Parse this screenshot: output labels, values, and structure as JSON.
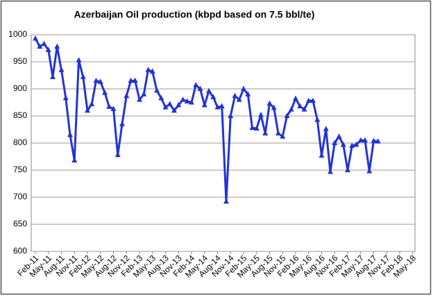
{
  "chart_data": {
    "type": "line",
    "title": "Azerbaijan Oil production (kbpd based on 7.5 bbl/te)",
    "categories": [
      "Feb-11",
      null,
      null,
      "May-11",
      null,
      null,
      "Aug-11",
      null,
      null,
      "Nov-11",
      null,
      null,
      "Feb-12",
      null,
      null,
      "May-12",
      null,
      null,
      "Aug-12",
      null,
      null,
      "Nov-12",
      null,
      null,
      "Feb-13",
      null,
      null,
      "May-13",
      null,
      null,
      "Aug-13",
      null,
      null,
      "Nov-13",
      null,
      null,
      "Feb-14",
      null,
      null,
      "May-14",
      null,
      null,
      "Aug-14",
      null,
      null,
      "Nov-14",
      null,
      null,
      "Feb-15",
      null,
      null,
      "May-15",
      null,
      null,
      "Aug-15",
      null,
      null,
      "Nov-15",
      null,
      null,
      "Feb-16",
      null,
      null,
      "May-16",
      null,
      null,
      "Aug-16",
      null,
      null,
      "Nov-16",
      null,
      null,
      "Feb-17",
      null,
      null,
      "May-17",
      null,
      null,
      "Aug-17",
      null,
      null,
      "Nov-17",
      null,
      null,
      "Feb-18",
      null,
      null,
      "May-18"
    ],
    "series": [
      {
        "color": "#2233d4",
        "values": [
          993,
          978,
          983,
          972,
          922,
          978,
          935,
          883,
          815,
          768,
          953,
          922,
          860,
          872,
          915,
          913,
          893,
          867,
          863,
          778,
          835,
          887,
          915,
          915,
          880,
          890,
          935,
          932,
          897,
          883,
          866,
          872,
          860,
          870,
          880,
          877,
          875,
          907,
          900,
          870,
          896,
          885,
          866,
          868,
          692,
          850,
          887,
          880,
          900,
          890,
          828,
          827,
          852,
          818,
          873,
          865,
          818,
          812,
          850,
          862,
          882,
          868,
          862,
          878,
          878,
          843,
          777,
          826,
          747,
          800,
          812,
          797,
          750,
          795,
          797,
          805,
          805,
          748,
          804,
          803,
          null,
          null,
          null,
          null,
          null,
          null,
          null,
          null
        ]
      }
    ],
    "ylim": [
      600,
      1000
    ],
    "yticks": [
      600,
      650,
      700,
      750,
      800,
      850,
      900,
      950,
      1000
    ],
    "grid": true
  }
}
